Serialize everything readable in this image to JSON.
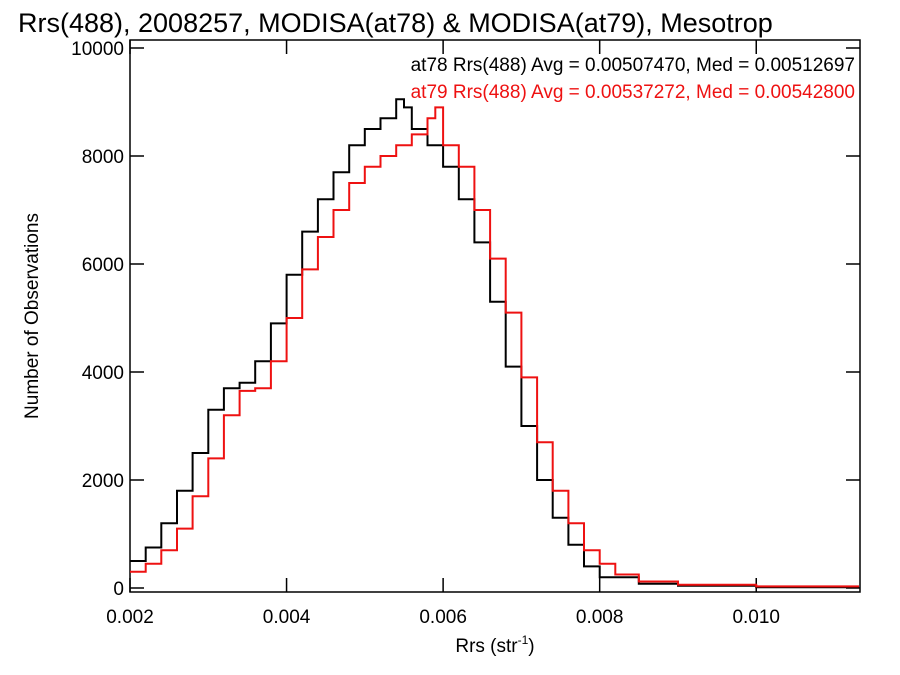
{
  "chart_data": {
    "type": "line",
    "title": "Rrs(488), 2008257, MODISA(at78) & MODISA(at79), Mesotrop",
    "xlabel_main": "Rrs (str",
    "xlabel_sup": "-1",
    "xlabel_close": ")",
    "ylabel": "Number of Observations",
    "xlim": [
      0.002,
      0.0113
    ],
    "ylim": [
      0,
      10000
    ],
    "x_ticks": [
      0.002,
      0.004,
      0.006,
      0.008,
      0.01
    ],
    "x_tick_labels": [
      "0.002",
      "0.004",
      "0.006",
      "0.008",
      "0.010"
    ],
    "y_ticks": [
      0,
      2000,
      4000,
      6000,
      8000,
      10000
    ],
    "y_tick_labels": [
      "0",
      "2000",
      "4000",
      "6000",
      "8000",
      "10000"
    ],
    "step": true,
    "series": [
      {
        "name": "at78",
        "color": "#000000",
        "annotation": "at78 Rrs(488) Avg = 0.00507470, Med = 0.00512697",
        "x": [
          0.002,
          0.0022,
          0.0024,
          0.0026,
          0.0028,
          0.003,
          0.0032,
          0.0034,
          0.0036,
          0.0038,
          0.004,
          0.0042,
          0.0044,
          0.0046,
          0.0048,
          0.005,
          0.0052,
          0.0054,
          0.0055,
          0.0056,
          0.0058,
          0.006,
          0.0062,
          0.0064,
          0.0066,
          0.0068,
          0.007,
          0.0072,
          0.0074,
          0.0076,
          0.0078,
          0.008,
          0.0085,
          0.009,
          0.01,
          0.0113
        ],
        "y": [
          500,
          750,
          1200,
          1800,
          2500,
          3300,
          3700,
          3800,
          4200,
          4900,
          5800,
          6600,
          7200,
          7700,
          8200,
          8500,
          8700,
          9050,
          8900,
          8500,
          8200,
          7800,
          7200,
          6400,
          5300,
          4100,
          3000,
          2000,
          1300,
          800,
          400,
          200,
          80,
          40,
          15,
          5
        ]
      },
      {
        "name": "at79",
        "color": "#ee1111",
        "annotation": "at79 Rrs(488) Avg = 0.00537272, Med = 0.00542800",
        "x": [
          0.002,
          0.0022,
          0.0024,
          0.0026,
          0.0028,
          0.003,
          0.0032,
          0.0034,
          0.0036,
          0.0038,
          0.004,
          0.0042,
          0.0044,
          0.0046,
          0.0048,
          0.005,
          0.0052,
          0.0054,
          0.0056,
          0.0058,
          0.0059,
          0.006,
          0.0062,
          0.0064,
          0.0066,
          0.0068,
          0.007,
          0.0072,
          0.0074,
          0.0076,
          0.0078,
          0.008,
          0.0082,
          0.0085,
          0.009,
          0.01,
          0.0113
        ],
        "y": [
          300,
          450,
          700,
          1100,
          1700,
          2400,
          3200,
          3650,
          3700,
          4200,
          5000,
          5900,
          6500,
          7000,
          7500,
          7800,
          8000,
          8200,
          8400,
          8700,
          8900,
          8200,
          7800,
          7000,
          6100,
          5100,
          3900,
          2700,
          1800,
          1200,
          700,
          450,
          250,
          120,
          60,
          30,
          15
        ]
      }
    ]
  }
}
